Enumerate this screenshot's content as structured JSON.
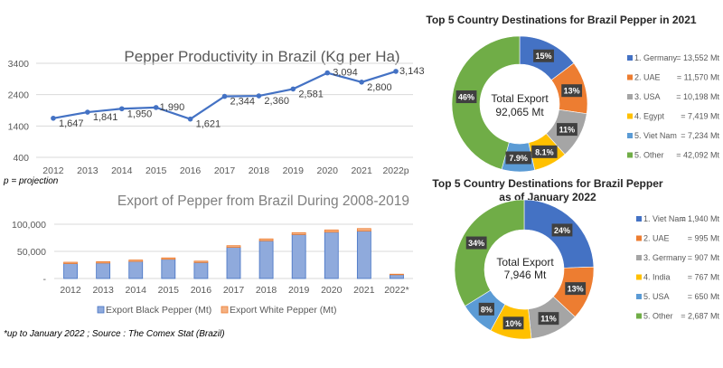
{
  "chart_data": [
    {
      "type": "line",
      "title": "Pepper Productivity in Brazil (Kg per Ha)",
      "categories": [
        "2012",
        "2013",
        "2014",
        "2015",
        "2016",
        "2017",
        "2018",
        "2019",
        "2020",
        "2021",
        "2022p"
      ],
      "values": [
        1647,
        1841,
        1950,
        1990,
        1621,
        2344,
        2360,
        2581,
        3094,
        2800,
        3143
      ],
      "data_labels": [
        "1,647",
        "1,841",
        "1,950",
        "1,990",
        "1,621",
        "2,344",
        "2,360",
        "2,581",
        "3,094",
        "2,800",
        "3,143"
      ],
      "yticks": [
        400,
        1400,
        2400,
        3400
      ],
      "ytick_labels": [
        "400",
        "1400",
        "2400",
        "3400"
      ],
      "ylim": [
        400,
        3400
      ],
      "xlabel": "",
      "ylabel": "",
      "grid": true,
      "color": "#4472c4",
      "note": "p = projection"
    },
    {
      "type": "bar",
      "stacked": true,
      "title": "Export of Pepper from Brazil During 2008-2019",
      "categories": [
        "2012",
        "2013",
        "2014",
        "2015",
        "2016",
        "2017",
        "2018",
        "2019",
        "2020",
        "2021",
        "2022*"
      ],
      "series": [
        {
          "name": "Export Black Pepper (Mt)",
          "color": "#8faadc",
          "values": [
            27500,
            28500,
            31500,
            35500,
            29500,
            57500,
            69500,
            81000,
            85500,
            87500,
            7000
          ]
        },
        {
          "name": "Export White Pepper (Mt)",
          "color": "#f4b183",
          "values": [
            2500,
            2500,
            2500,
            2500,
            2500,
            3000,
            3500,
            3500,
            4000,
            4500,
            946
          ]
        }
      ],
      "yticks": [
        0,
        50000,
        100000
      ],
      "ytick_labels": [
        "-",
        "50,000",
        "100,000"
      ],
      "ylim": [
        0,
        100000
      ],
      "grid": true,
      "legend": "bottom",
      "note": "*up to January 2022 ; Source : The Comex Stat (Brazil)"
    },
    {
      "type": "pie",
      "donut": true,
      "title": "Top 5 Country Destinations for Brazil Pepper in 2021",
      "center_label": [
        "Total Export",
        "92,065 Mt"
      ],
      "labels": [
        "1. Germany",
        "2. UAE",
        "3. USA",
        "4. Egypt",
        "5. Viet Nam",
        "5. Other"
      ],
      "values": [
        13552,
        11570,
        10198,
        7419,
        7234,
        42092
      ],
      "value_labels": [
        "= 13,552 Mt",
        "= 11,570 Mt",
        "= 10,198 Mt",
        "= 7,419 Mt",
        "= 7,234 Mt",
        "= 42,092 Mt"
      ],
      "percent_labels": [
        "15%",
        "13%",
        "11%",
        "8.1%",
        "7.9%",
        "46%"
      ],
      "colors": [
        "#4472c4",
        "#ed7d31",
        "#a5a5a5",
        "#ffc000",
        "#5b9bd5",
        "#70ad47"
      ],
      "legend": "right"
    },
    {
      "type": "pie",
      "donut": true,
      "title": "Top 5 Country Destinations for Brazil Pepper as of January 2022",
      "title_lines": [
        "Top 5 Country Destinations for Brazil Pepper",
        "as of January 2022"
      ],
      "center_label": [
        "Total Export",
        "7,946 Mt"
      ],
      "labels": [
        "1. Viet Nam",
        "2. UAE",
        "3. Germany",
        "4. India",
        "5. USA",
        "5. Other"
      ],
      "values": [
        1940,
        995,
        907,
        767,
        650,
        2687
      ],
      "value_labels": [
        "= 1,940 Mt",
        "= 995 Mt",
        "= 907 Mt",
        "= 767 Mt",
        "= 650 Mt",
        "= 2,687 Mt"
      ],
      "percent_labels": [
        "24%",
        "13%",
        "11%",
        "10%",
        "8%",
        "34%"
      ],
      "colors": [
        "#4472c4",
        "#ed7d31",
        "#a5a5a5",
        "#ffc000",
        "#5b9bd5",
        "#70ad47"
      ],
      "legend": "right"
    }
  ]
}
